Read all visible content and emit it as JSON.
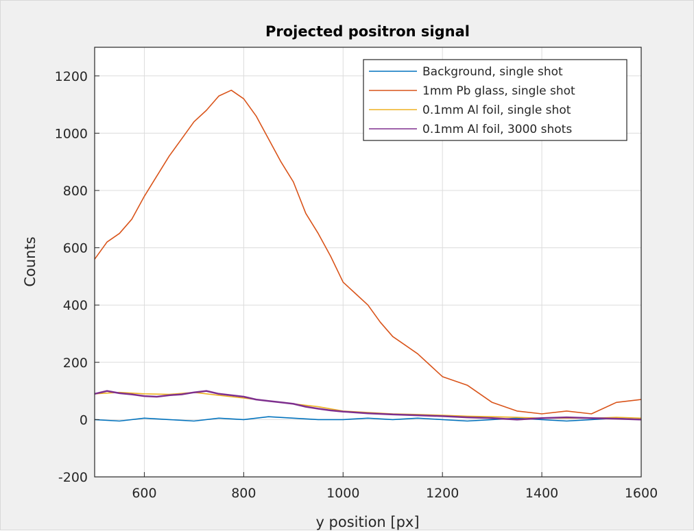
{
  "chart_data": {
    "type": "line",
    "title": "Projected positron signal",
    "xlabel": "y position [px]",
    "ylabel": "Counts",
    "xlim": [
      500,
      1600
    ],
    "ylim": [
      -200,
      1300
    ],
    "xticks": [
      600,
      800,
      1000,
      1200,
      1400,
      1600
    ],
    "yticks": [
      -200,
      0,
      200,
      400,
      600,
      800,
      1000,
      1200
    ],
    "grid": true,
    "legend_position": "top-right",
    "series": [
      {
        "name": "Background, single shot",
        "color": "#0072BD",
        "x": [
          500,
          550,
          600,
          650,
          700,
          750,
          800,
          850,
          900,
          950,
          1000,
          1050,
          1100,
          1150,
          1200,
          1250,
          1300,
          1350,
          1400,
          1450,
          1500,
          1550,
          1600
        ],
        "y": [
          0,
          -5,
          5,
          0,
          -5,
          5,
          0,
          10,
          5,
          0,
          0,
          5,
          0,
          5,
          0,
          -5,
          0,
          5,
          0,
          -5,
          0,
          5,
          0
        ]
      },
      {
        "name": "1mm Pb glass, single shot",
        "color": "#D95319",
        "x": [
          500,
          525,
          550,
          575,
          600,
          625,
          650,
          675,
          700,
          725,
          750,
          775,
          800,
          825,
          850,
          875,
          900,
          925,
          950,
          975,
          1000,
          1025,
          1050,
          1075,
          1100,
          1125,
          1150,
          1175,
          1200,
          1250,
          1300,
          1350,
          1400,
          1450,
          1500,
          1550,
          1600
        ],
        "y": [
          560,
          620,
          650,
          700,
          780,
          850,
          920,
          980,
          1040,
          1080,
          1130,
          1150,
          1120,
          1060,
          980,
          900,
          830,
          720,
          650,
          570,
          480,
          440,
          400,
          340,
          290,
          260,
          230,
          190,
          150,
          120,
          60,
          30,
          20,
          30,
          20,
          60,
          70
        ]
      },
      {
        "name": "0.1mm Al foil, single shot",
        "color": "#EDB120",
        "x": [
          500,
          550,
          600,
          650,
          700,
          750,
          800,
          850,
          900,
          950,
          1000,
          1050,
          1100,
          1150,
          1200,
          1250,
          1300,
          1350,
          1400,
          1450,
          1500,
          1550,
          1600
        ],
        "y": [
          90,
          95,
          90,
          88,
          95,
          85,
          75,
          65,
          55,
          45,
          30,
          25,
          20,
          18,
          15,
          12,
          10,
          8,
          5,
          5,
          5,
          8,
          5
        ]
      },
      {
        "name": "0.1mm Al foil, 3000 shots",
        "color": "#7E2F8E",
        "x": [
          500,
          525,
          550,
          575,
          600,
          625,
          650,
          675,
          700,
          725,
          750,
          775,
          800,
          825,
          850,
          875,
          900,
          925,
          950,
          975,
          1000,
          1050,
          1100,
          1150,
          1200,
          1250,
          1300,
          1350,
          1400,
          1450,
          1500,
          1550,
          1600
        ],
        "y": [
          90,
          100,
          92,
          88,
          82,
          80,
          85,
          88,
          95,
          100,
          90,
          85,
          80,
          70,
          65,
          60,
          55,
          45,
          38,
          32,
          28,
          22,
          18,
          15,
          12,
          8,
          5,
          0,
          5,
          8,
          5,
          3,
          0
        ]
      }
    ]
  }
}
